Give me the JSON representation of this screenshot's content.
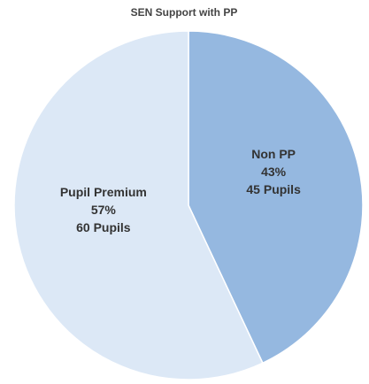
{
  "chart_data": {
    "type": "pie",
    "title": "SEN Support with PP",
    "categories": [
      "Non PP",
      "Pupil Premium"
    ],
    "values": [
      43,
      57
    ],
    "value_labels": [
      "43%",
      "57%"
    ],
    "counts": [
      45,
      60
    ],
    "count_labels": [
      "45 Pupils",
      "60 Pupils"
    ],
    "colors": [
      "#95b8e0",
      "#dce8f6"
    ]
  }
}
